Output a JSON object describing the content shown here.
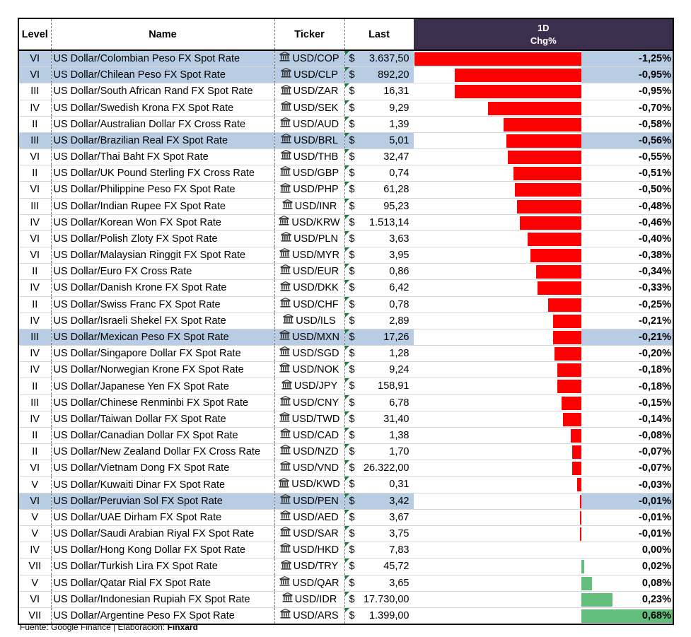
{
  "headers": {
    "level": "Level",
    "name": "Name",
    "ticker": "Ticker",
    "last": "Last",
    "chg_line1": "1D",
    "chg_line2": "Chg%"
  },
  "currency_symbol": "$",
  "colors": {
    "header_bg": "#3c2f4e",
    "highlight_row": "#b8cce4",
    "negative_bar": "#ff0000",
    "positive_bar": "#63be7b"
  },
  "icons": {
    "ticker": "bank-icon"
  },
  "rows": [
    {
      "level": "VI",
      "name": "US Dollar/Colombian Peso FX Spot Rate",
      "ticker": "USD/COP",
      "last": "3.637,50",
      "chg_pct": "-1,25%",
      "chg": -1.25,
      "highlight": true
    },
    {
      "level": "VI",
      "name": "US Dollar/Chilean Peso FX Spot Rate",
      "ticker": "USD/CLP",
      "last": "892,20",
      "chg_pct": "-0,95%",
      "chg": -0.95,
      "highlight": true
    },
    {
      "level": "III",
      "name": "US Dollar/South African Rand FX Spot Rate",
      "ticker": "USD/ZAR",
      "last": "16,31",
      "chg_pct": "-0,95%",
      "chg": -0.95,
      "highlight": false
    },
    {
      "level": "IV",
      "name": "US Dollar/Swedish Krona FX Spot Rate",
      "ticker": "USD/SEK",
      "last": "9,29",
      "chg_pct": "-0,70%",
      "chg": -0.7,
      "highlight": false
    },
    {
      "level": "II",
      "name": "US Dollar/Australian Dollar FX Cross Rate",
      "ticker": "USD/AUD",
      "last": "1,39",
      "chg_pct": "-0,58%",
      "chg": -0.58,
      "highlight": false
    },
    {
      "level": "III",
      "name": "US Dollar/Brazilian Real FX Spot Rate",
      "ticker": "USD/BRL",
      "last": "5,01",
      "chg_pct": "-0,56%",
      "chg": -0.56,
      "highlight": true
    },
    {
      "level": "VI",
      "name": "US Dollar/Thai Baht FX Spot Rate",
      "ticker": "USD/THB",
      "last": "32,47",
      "chg_pct": "-0,55%",
      "chg": -0.55,
      "highlight": false
    },
    {
      "level": "II",
      "name": "US Dollar/UK Pound Sterling FX Cross Rate",
      "ticker": "USD/GBP",
      "last": "0,74",
      "chg_pct": "-0,51%",
      "chg": -0.51,
      "highlight": false
    },
    {
      "level": "VI",
      "name": "US Dollar/Philippine Peso FX Spot Rate",
      "ticker": "USD/PHP",
      "last": "61,28",
      "chg_pct": "-0,50%",
      "chg": -0.5,
      "highlight": false
    },
    {
      "level": "III",
      "name": "US Dollar/Indian Rupee FX Spot Rate",
      "ticker": "USD/INR",
      "last": "95,23",
      "chg_pct": "-0,48%",
      "chg": -0.48,
      "highlight": false
    },
    {
      "level": "IV",
      "name": "US Dollar/Korean Won FX Spot Rate",
      "ticker": "USD/KRW",
      "last": "1.513,14",
      "chg_pct": "-0,46%",
      "chg": -0.46,
      "highlight": false
    },
    {
      "level": "VI",
      "name": "US Dollar/Polish Zloty FX Spot Rate",
      "ticker": "USD/PLN",
      "last": "3,63",
      "chg_pct": "-0,40%",
      "chg": -0.4,
      "highlight": false
    },
    {
      "level": "VI",
      "name": "US Dollar/Malaysian Ringgit FX Spot Rate",
      "ticker": "USD/MYR",
      "last": "3,95",
      "chg_pct": "-0,38%",
      "chg": -0.38,
      "highlight": false
    },
    {
      "level": "II",
      "name": "US Dollar/Euro FX Cross Rate",
      "ticker": "USD/EUR",
      "last": "0,86",
      "chg_pct": "-0,34%",
      "chg": -0.34,
      "highlight": false
    },
    {
      "level": "IV",
      "name": "US Dollar/Danish Krone FX Spot Rate",
      "ticker": "USD/DKK",
      "last": "6,42",
      "chg_pct": "-0,33%",
      "chg": -0.33,
      "highlight": false
    },
    {
      "level": "II",
      "name": "US Dollar/Swiss Franc FX Spot Rate",
      "ticker": "USD/CHF",
      "last": "0,78",
      "chg_pct": "-0,25%",
      "chg": -0.25,
      "highlight": false
    },
    {
      "level": "IV",
      "name": "US Dollar/Israeli Shekel FX Spot Rate",
      "ticker": "USD/ILS",
      "last": "2,89",
      "chg_pct": "-0,21%",
      "chg": -0.21,
      "highlight": false
    },
    {
      "level": "III",
      "name": "US Dollar/Mexican Peso FX Spot Rate",
      "ticker": "USD/MXN",
      "last": "17,26",
      "chg_pct": "-0,21%",
      "chg": -0.21,
      "highlight": true
    },
    {
      "level": "IV",
      "name": "US Dollar/Singapore Dollar FX Spot Rate",
      "ticker": "USD/SGD",
      "last": "1,28",
      "chg_pct": "-0,20%",
      "chg": -0.2,
      "highlight": false
    },
    {
      "level": "IV",
      "name": "US Dollar/Norwegian Krone FX Spot Rate",
      "ticker": "USD/NOK",
      "last": "9,24",
      "chg_pct": "-0,18%",
      "chg": -0.18,
      "highlight": false
    },
    {
      "level": "II",
      "name": "US Dollar/Japanese Yen FX Spot Rate",
      "ticker": "USD/JPY",
      "last": "158,91",
      "chg_pct": "-0,18%",
      "chg": -0.18,
      "highlight": false
    },
    {
      "level": "III",
      "name": "US Dollar/Chinese Renminbi FX Spot Rate",
      "ticker": "USD/CNY",
      "last": "6,78",
      "chg_pct": "-0,15%",
      "chg": -0.15,
      "highlight": false
    },
    {
      "level": "IV",
      "name": "US Dollar/Taiwan Dollar FX Spot Rate",
      "ticker": "USD/TWD",
      "last": "31,40",
      "chg_pct": "-0,14%",
      "chg": -0.14,
      "highlight": false
    },
    {
      "level": "II",
      "name": "US Dollar/Canadian Dollar FX Spot Rate",
      "ticker": "USD/CAD",
      "last": "1,38",
      "chg_pct": "-0,08%",
      "chg": -0.08,
      "highlight": false
    },
    {
      "level": "II",
      "name": "US Dollar/New Zealand Dollar FX Cross Rate",
      "ticker": "USD/NZD",
      "last": "1,70",
      "chg_pct": "-0,07%",
      "chg": -0.07,
      "highlight": false
    },
    {
      "level": "VI",
      "name": "US Dollar/Vietnam Dong FX Spot Rate",
      "ticker": "USD/VND",
      "last": "26.322,00",
      "chg_pct": "-0,07%",
      "chg": -0.07,
      "highlight": false
    },
    {
      "level": "V",
      "name": "US Dollar/Kuwaiti Dinar FX Spot Rate",
      "ticker": "USD/KWD",
      "last": "0,31",
      "chg_pct": "-0,03%",
      "chg": -0.03,
      "highlight": false
    },
    {
      "level": "VI",
      "name": "US Dollar/Peruvian Sol FX Spot Rate",
      "ticker": "USD/PEN",
      "last": "3,42",
      "chg_pct": "-0,01%",
      "chg": -0.01,
      "highlight": true
    },
    {
      "level": "V",
      "name": "US Dollar/UAE Dirham FX Spot Rate",
      "ticker": "USD/AED",
      "last": "3,67",
      "chg_pct": "-0,01%",
      "chg": -0.01,
      "highlight": false
    },
    {
      "level": "V",
      "name": "US Dollar/Saudi Arabian Riyal FX Spot Rate",
      "ticker": "USD/SAR",
      "last": "3,75",
      "chg_pct": "-0,01%",
      "chg": -0.01,
      "highlight": false
    },
    {
      "level": "IV",
      "name": "US Dollar/Hong Kong Dollar FX Spot Rate",
      "ticker": "USD/HKD",
      "last": "7,83",
      "chg_pct": "0,00%",
      "chg": 0.0,
      "highlight": false
    },
    {
      "level": "VII",
      "name": "US Dollar/Turkish Lira FX Spot Rate",
      "ticker": "USD/TRY",
      "last": "45,72",
      "chg_pct": "0,02%",
      "chg": 0.02,
      "highlight": false
    },
    {
      "level": "V",
      "name": "US Dollar/Qatar Rial FX Spot Rate",
      "ticker": "USD/QAR",
      "last": "3,65",
      "chg_pct": "0,08%",
      "chg": 0.08,
      "highlight": false
    },
    {
      "level": "VI",
      "name": "US Dollar/Indonesian Rupiah FX Spot Rate",
      "ticker": "USD/IDR",
      "last": "17.730,00",
      "chg_pct": "0,23%",
      "chg": 0.23,
      "highlight": false
    },
    {
      "level": "VII",
      "name": "US Dollar/Argentine Peso FX Spot Rate",
      "ticker": "USD/ARS",
      "last": "1.399,00",
      "chg_pct": "0,68%",
      "chg": 0.68,
      "highlight": false
    }
  ],
  "footer": {
    "source": "Fuente: Google Finance | Elaboración:",
    "brand": "Finxard"
  }
}
